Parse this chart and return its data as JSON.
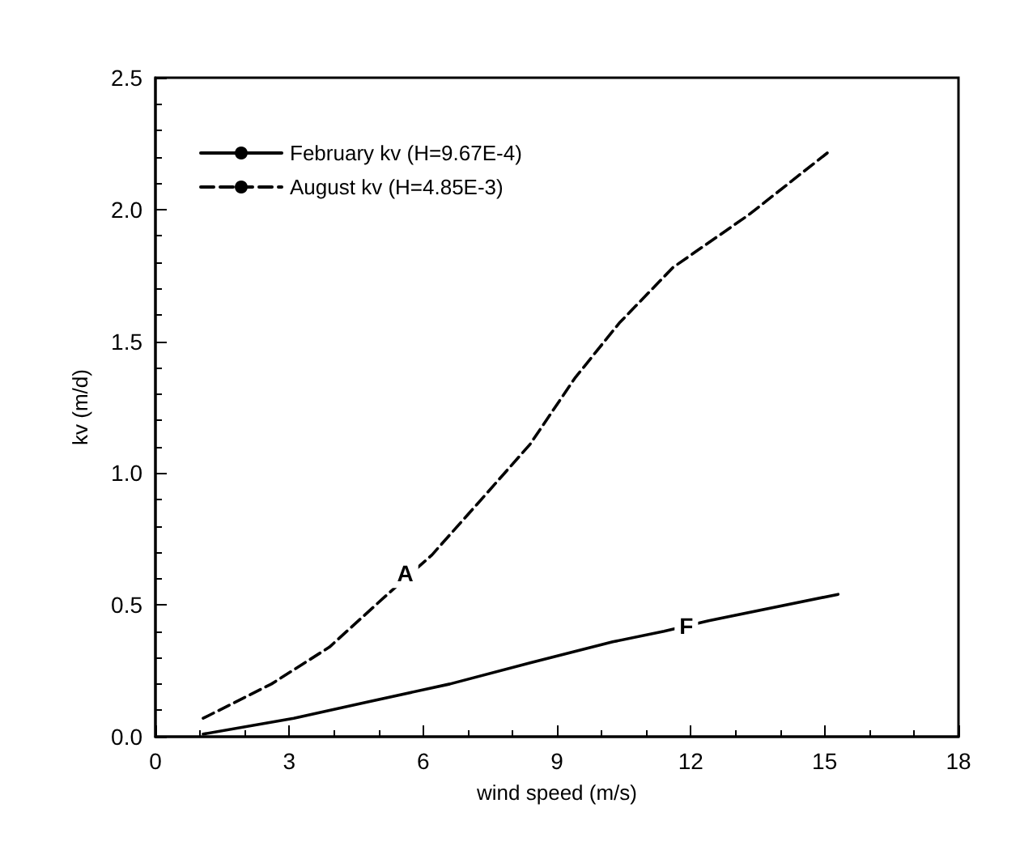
{
  "chart_data": {
    "type": "line",
    "xlabel": "wind speed (m/s)",
    "ylabel": "kv (m/d)",
    "xlim": [
      0,
      18
    ],
    "xticks": [
      0,
      3,
      6,
      9,
      12,
      15,
      18
    ],
    "ylim": [
      0,
      2.5
    ],
    "yticks": [
      {
        "value": 0,
        "label": "0.0"
      },
      {
        "value": 0.5,
        "label": "0.5"
      },
      {
        "value": 1,
        "label": "1.0"
      },
      {
        "value": 1.5,
        "label": "1.5"
      },
      {
        "value": 2,
        "label": "2.0"
      },
      {
        "value": 2.5,
        "label": "2.5"
      }
    ],
    "grid": false,
    "legend": "top left",
    "marker": "none",
    "series": [
      {
        "name": "February kv (H=9.67E-4)",
        "color": "#000000",
        "line_style": "solid",
        "x": [
          1.07,
          3.1,
          4.7,
          6.6,
          8.4,
          10.25,
          11.4,
          12.4,
          15.3
        ],
        "values": [
          0.01,
          0.07,
          0.13,
          0.2,
          0.28,
          0.36,
          0.4,
          0.44,
          0.54
        ]
      },
      {
        "name": "August kv (H=4.85E-3)",
        "color": "#000000",
        "line_style": "dashed",
        "x": [
          1.07,
          2.6,
          3.9,
          5.2,
          6.2,
          7.2,
          8.4,
          9.4,
          10.4,
          11.6,
          13.3,
          15.1
        ],
        "values": [
          0.07,
          0.2,
          0.34,
          0.54,
          0.69,
          0.88,
          1.11,
          1.36,
          1.57,
          1.78,
          1.98,
          2.22
        ]
      }
    ],
    "annotations": [
      {
        "text": "A",
        "x": 5.6,
        "y": 0.62
      },
      {
        "text": "F",
        "x": 11.9,
        "y": 0.42
      }
    ]
  }
}
